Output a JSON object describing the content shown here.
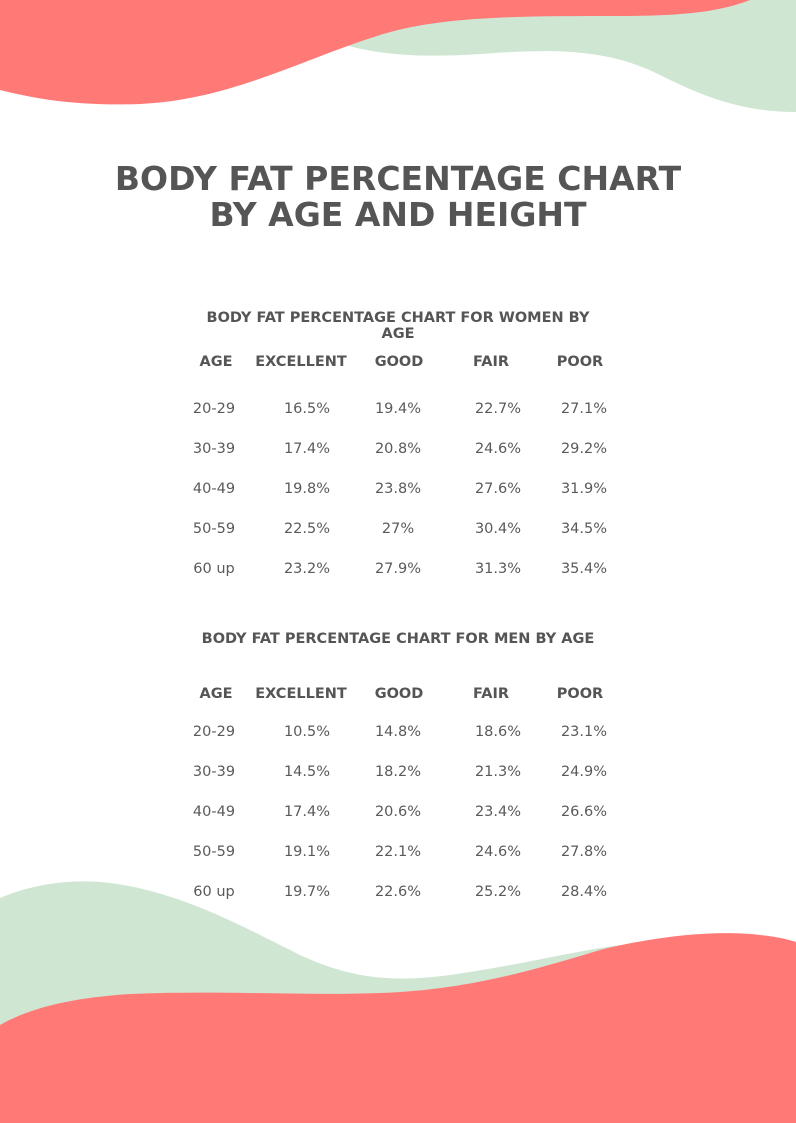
{
  "title": {
    "line1": "BODY FAT PERCENTAGE CHART",
    "line2": "BY AGE AND HEIGHT"
  },
  "colors": {
    "coral": "#ff7a77",
    "mint": "#cfe6d3",
    "text": "#555555"
  },
  "women": {
    "title": "BODY FAT PERCENTAGE CHART FOR WOMEN BY AGE",
    "headers": [
      "AGE",
      "EXCELLENT",
      "GOOD",
      "FAIR",
      "POOR"
    ],
    "rows": [
      [
        "20-29",
        "16.5%",
        "19.4%",
        "22.7%",
        "27.1%"
      ],
      [
        "30-39",
        "17.4%",
        "20.8%",
        "24.6%",
        "29.2%"
      ],
      [
        "40-49",
        "19.8%",
        "23.8%",
        "27.6%",
        "31.9%"
      ],
      [
        "50-59",
        "22.5%",
        "27%",
        "30.4%",
        "34.5%"
      ],
      [
        "60 up",
        "23.2%",
        "27.9%",
        "31.3%",
        "35.4%"
      ]
    ]
  },
  "men": {
    "title": "BODY FAT PERCENTAGE CHART FOR MEN BY AGE",
    "headers": [
      "AGE",
      "EXCELLENT",
      "GOOD",
      "FAIR",
      "POOR"
    ],
    "rows": [
      [
        "20-29",
        "10.5%",
        "14.8%",
        "18.6%",
        "23.1%"
      ],
      [
        "30-39",
        "14.5%",
        "18.2%",
        "21.3%",
        "24.9%"
      ],
      [
        "40-49",
        "17.4%",
        "20.6%",
        "23.4%",
        "26.6%"
      ],
      [
        "50-59",
        "19.1%",
        "22.1%",
        "24.6%",
        "27.8%"
      ],
      [
        "60 up",
        "19.7%",
        "22.6%",
        "25.2%",
        "28.4%"
      ]
    ]
  }
}
